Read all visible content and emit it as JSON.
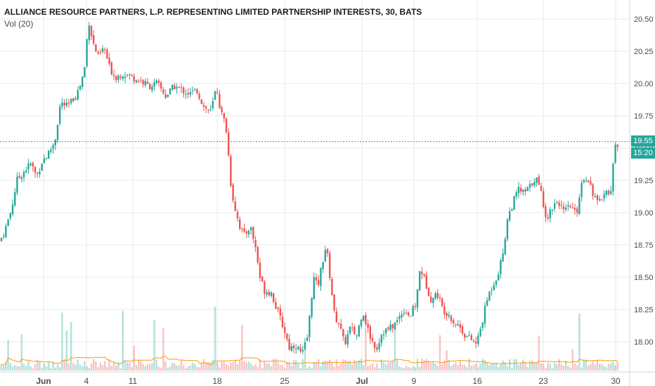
{
  "header": {
    "title": "ALLIANCE RESOURCE PARTNERS, L.P. REPRESENTING LIMITED PARTNERSHIP INTERESTS, 30, BATS",
    "indicator": "Vol (20)"
  },
  "price_axis": {
    "labels": [
      "20.50",
      "20.25",
      "20.00",
      "19.75",
      "19.50",
      "19.25",
      "19.00",
      "18.75",
      "18.50",
      "18.25",
      "18.00"
    ],
    "current_price": "19.55",
    "countdown": "15:20"
  },
  "time_axis": {
    "labels": [
      "Jun",
      "4",
      "11",
      "18",
      "25",
      "Jul",
      "9",
      "16",
      "23",
      "30"
    ]
  },
  "colors": {
    "up": "#26a69a",
    "down": "#ef5350",
    "grid": "#e8e8e8",
    "axis_text": "#4a4a4a",
    "ma_line": "#ff9800",
    "price_line": "#26a69a"
  },
  "chart_data": {
    "type": "candlestick",
    "title": "ALLIANCE RESOURCE PARTNERS, L.P. REPRESENTING LIMITED PARTNERSHIP INTERESTS, 30, BATS",
    "interval": "30",
    "exchange": "BATS",
    "yrange": [
      17.85,
      20.56
    ],
    "x_ticks": [
      "Jun",
      "4",
      "11",
      "18",
      "25",
      "Jul",
      "9",
      "16",
      "23",
      "30"
    ],
    "last_price": 19.55,
    "grid": true,
    "close_path": [
      [
        0,
        18.78
      ],
      [
        8,
        18.88
      ],
      [
        16,
        19.02
      ],
      [
        24,
        19.25
      ],
      [
        34,
        19.32
      ],
      [
        44,
        19.38
      ],
      [
        52,
        19.28
      ],
      [
        60,
        19.4
      ],
      [
        68,
        19.45
      ],
      [
        78,
        19.55
      ],
      [
        86,
        19.85
      ],
      [
        96,
        19.82
      ],
      [
        104,
        19.88
      ],
      [
        112,
        19.95
      ],
      [
        120,
        20.1
      ],
      [
        126,
        20.5
      ],
      [
        132,
        20.32
      ],
      [
        140,
        20.2
      ],
      [
        148,
        20.28
      ],
      [
        156,
        20.12
      ],
      [
        164,
        20.05
      ],
      [
        176,
        20.08
      ],
      [
        188,
        20.05
      ],
      [
        200,
        20.02
      ],
      [
        212,
        19.98
      ],
      [
        224,
        20.0
      ],
      [
        236,
        19.9
      ],
      [
        248,
        19.98
      ],
      [
        258,
        19.95
      ],
      [
        270,
        19.92
      ],
      [
        280,
        19.95
      ],
      [
        290,
        19.82
      ],
      [
        300,
        19.78
      ],
      [
        308,
        19.98
      ],
      [
        314,
        19.78
      ],
      [
        320,
        19.7
      ],
      [
        324,
        19.58
      ],
      [
        326,
        19.35
      ],
      [
        330,
        19.15
      ],
      [
        336,
        19.0
      ],
      [
        342,
        18.88
      ],
      [
        348,
        18.82
      ],
      [
        356,
        18.9
      ],
      [
        364,
        18.72
      ],
      [
        370,
        18.5
      ],
      [
        376,
        18.4
      ],
      [
        386,
        18.38
      ],
      [
        396,
        18.22
      ],
      [
        404,
        18.1
      ],
      [
        412,
        17.95
      ],
      [
        420,
        17.98
      ],
      [
        430,
        17.9
      ],
      [
        438,
        18.05
      ],
      [
        446,
        18.5
      ],
      [
        452,
        18.42
      ],
      [
        458,
        18.6
      ],
      [
        464,
        18.75
      ],
      [
        470,
        18.48
      ],
      [
        476,
        18.2
      ],
      [
        482,
        18.15
      ],
      [
        490,
        17.98
      ],
      [
        498,
        18.1
      ],
      [
        508,
        18.05
      ],
      [
        516,
        18.25
      ],
      [
        522,
        18.12
      ],
      [
        528,
        18.02
      ],
      [
        536,
        17.95
      ],
      [
        544,
        18.08
      ],
      [
        554,
        18.1
      ],
      [
        564,
        18.15
      ],
      [
        574,
        18.25
      ],
      [
        584,
        18.2
      ],
      [
        592,
        18.3
      ],
      [
        598,
        18.58
      ],
      [
        606,
        18.45
      ],
      [
        614,
        18.32
      ],
      [
        622,
        18.38
      ],
      [
        630,
        18.25
      ],
      [
        638,
        18.22
      ],
      [
        646,
        18.15
      ],
      [
        654,
        18.12
      ],
      [
        662,
        18.05
      ],
      [
        670,
        18.02
      ],
      [
        678,
        17.98
      ],
      [
        686,
        18.15
      ],
      [
        694,
        18.35
      ],
      [
        702,
        18.45
      ],
      [
        710,
        18.55
      ],
      [
        716,
        18.7
      ],
      [
        722,
        18.95
      ],
      [
        730,
        19.08
      ],
      [
        738,
        19.18
      ],
      [
        746,
        19.15
      ],
      [
        754,
        19.2
      ],
      [
        762,
        19.28
      ],
      [
        770,
        19.15
      ],
      [
        778,
        18.95
      ],
      [
        786,
        19.05
      ],
      [
        794,
        19.1
      ],
      [
        802,
        19.0
      ],
      [
        812,
        19.05
      ],
      [
        820,
        18.98
      ],
      [
        828,
        19.25
      ],
      [
        836,
        19.28
      ],
      [
        844,
        19.15
      ],
      [
        852,
        19.05
      ],
      [
        860,
        19.18
      ],
      [
        868,
        19.12
      ],
      [
        874,
        19.48
      ],
      [
        880,
        19.55
      ]
    ],
    "series": [
      {
        "name": "Vol (20)",
        "type": "volume",
        "moving_average": 20
      }
    ]
  }
}
